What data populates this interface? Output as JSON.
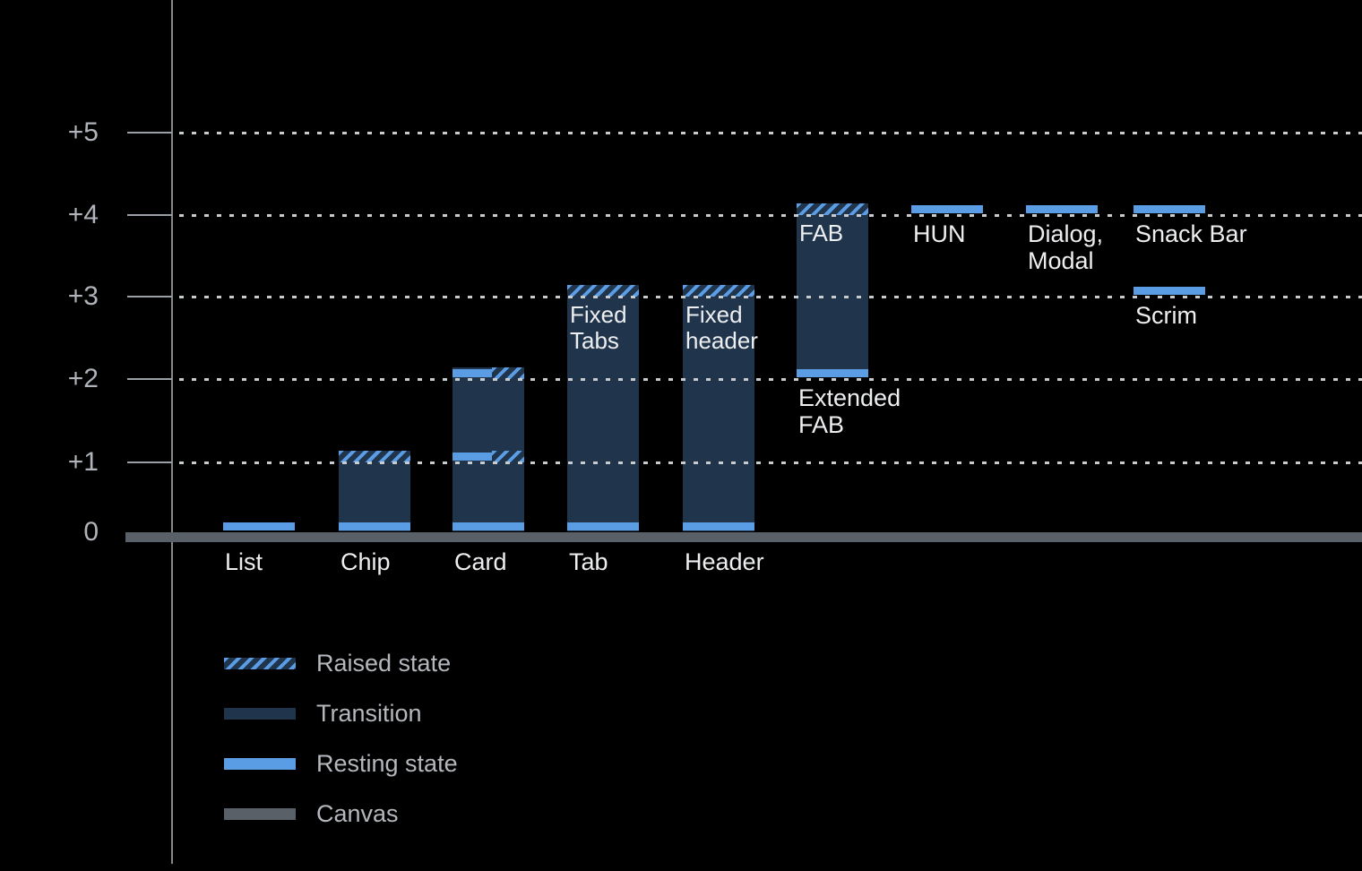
{
  "colors": {
    "background": "#000000",
    "resting_state_blue": "#5b9de4",
    "transition_navy": "#20344c",
    "canvas_gray": "#596068",
    "gridline_gray": "#c9cccf",
    "axis_gray": "#9aa0a6",
    "tick_text_gray": "#b0b4ba",
    "legend_text_gray": "#b4b8bd",
    "label_text_white": "#edeef0"
  },
  "chart_data": {
    "type": "bar",
    "title": "",
    "description": "Elevation levels of UI components: resting state, raised state and transition ranges above the canvas (0).",
    "y_axis": {
      "range": [
        0,
        5
      ],
      "gridlines": "dotted horizontal lines at +1 through +5",
      "ticks": [
        {
          "label": "+5",
          "level": 5
        },
        {
          "label": "+4",
          "level": 4
        },
        {
          "label": "+3",
          "level": 3
        },
        {
          "label": "+2",
          "level": 2
        },
        {
          "label": "+1",
          "level": 1
        },
        {
          "label": "0",
          "level": 0
        }
      ]
    },
    "columns": [
      {
        "slot": 0,
        "label": "List",
        "label_level": 0,
        "resting": [
          {
            "level": 0
          }
        ]
      },
      {
        "slot": 1,
        "label": "Chip",
        "label_level": 0,
        "resting": [
          {
            "level": 0
          }
        ],
        "transition": {
          "from": 0,
          "to": 1
        },
        "raised": [
          {
            "level": 1
          }
        ]
      },
      {
        "slot": 2,
        "label": "Card",
        "label_level": 0,
        "resting": [
          {
            "level": 0
          },
          {
            "level": 1,
            "side": "left"
          },
          {
            "level": 2,
            "side": "left"
          }
        ],
        "transition": {
          "from": 0,
          "to": 2
        },
        "raised": [
          {
            "level": 1,
            "side": "right"
          },
          {
            "level": 2,
            "side": "right"
          }
        ]
      },
      {
        "slot": 3,
        "label": "Tab",
        "label_level": 0,
        "inner_label": "Fixed\nTabs",
        "resting": [
          {
            "level": 0
          }
        ],
        "transition": {
          "from": 0,
          "to": 3
        },
        "raised": [
          {
            "level": 3
          }
        ]
      },
      {
        "slot": 4,
        "label": "Header",
        "label_level": 0,
        "inner_label": "Fixed\nheader",
        "resting": [
          {
            "level": 0
          }
        ],
        "transition": {
          "from": 0,
          "to": 3
        },
        "raised": [
          {
            "level": 3
          }
        ]
      },
      {
        "slot": 5,
        "label": "Extended\nFAB",
        "label_level": 2,
        "inner_label": "FAB",
        "resting": [
          {
            "level": 2
          }
        ],
        "transition": {
          "from": 2,
          "to": 4
        },
        "raised": [
          {
            "level": 4
          }
        ]
      },
      {
        "slot": 6,
        "label": "HUN",
        "label_level": 4,
        "resting": [
          {
            "level": 4
          }
        ]
      },
      {
        "slot": 7,
        "label": "Dialog,\nModal",
        "label_level": 4,
        "resting": [
          {
            "level": 4
          }
        ]
      },
      {
        "slot": 8,
        "label": "Snack Bar",
        "label_level": 4,
        "resting": [
          {
            "level": 4
          }
        ]
      },
      {
        "slot": 8,
        "label": "Scrim",
        "label_level": 3,
        "resting": [
          {
            "level": 3
          }
        ]
      }
    ],
    "legend": {
      "position": "bottom-left",
      "items": [
        {
          "label": "Raised state",
          "swatch": "raised"
        },
        {
          "label": "Transition",
          "swatch": "transition"
        },
        {
          "label": "Resting state",
          "swatch": "resting"
        },
        {
          "label": "Canvas",
          "swatch": "canvas"
        }
      ]
    }
  }
}
